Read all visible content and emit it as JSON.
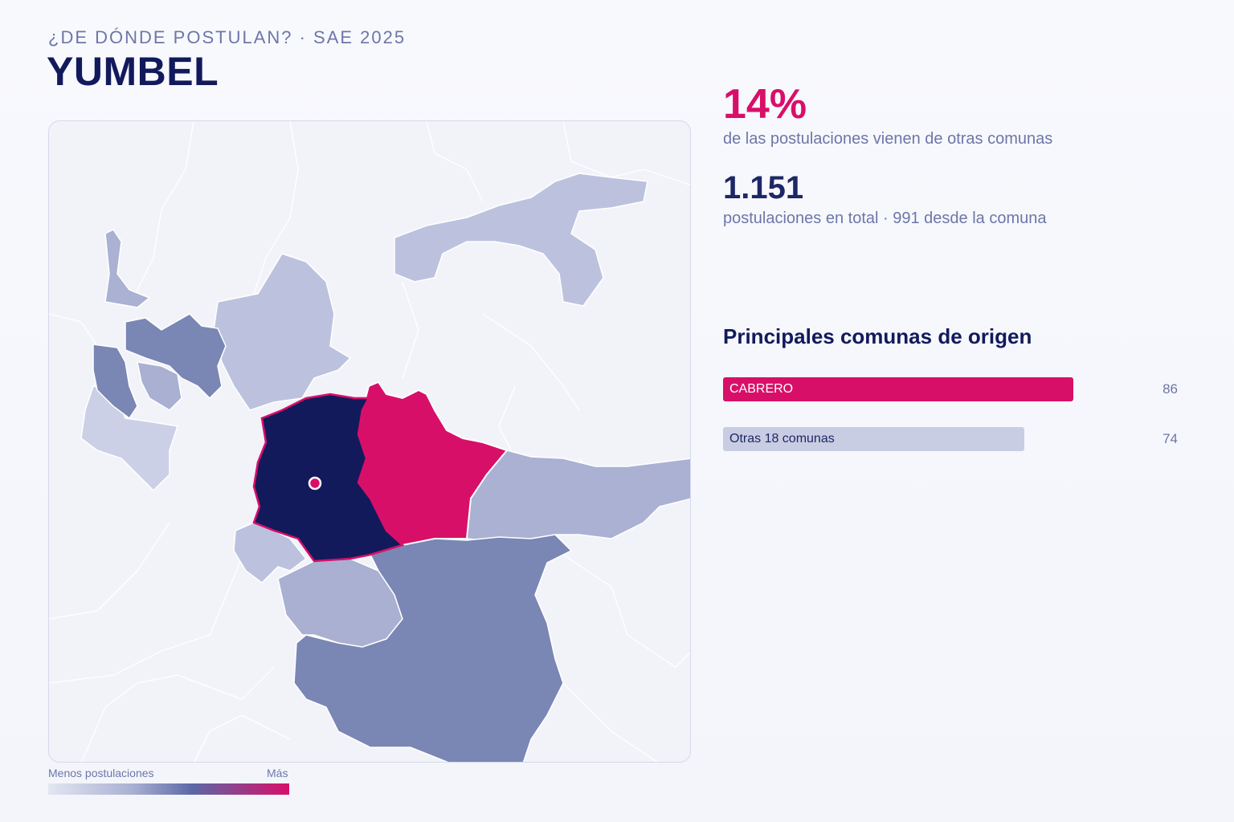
{
  "header": {
    "kicker": "¿DE DÓNDE POSTULAN? · SAE 2025",
    "title": "YUMBEL"
  },
  "stats": {
    "percent_external": "14%",
    "percent_external_label": "de las postulaciones vienen de otras comunas",
    "total": "1.151",
    "total_label": "postulaciones en total · 991 desde la comuna"
  },
  "origins": {
    "title": "Principales comunas de origen",
    "items": [
      {
        "label": "CABRERO",
        "value": "86",
        "color": "#d80f69"
      },
      {
        "label": "Otras 18 comunas",
        "value": "74",
        "color": "#c9cde3"
      }
    ]
  },
  "legend": {
    "min_label": "Menos postulaciones",
    "max_label": "Más"
  },
  "map": {
    "selected_commune": "YUMBEL",
    "colors": {
      "selected": "#121a5c",
      "top_origin": "#d80f69",
      "high": "#7a86b4",
      "mid": "#a9b0d2",
      "low": "#bcc2de",
      "background": "#f1f3f9",
      "border": "#ffffff"
    }
  }
}
